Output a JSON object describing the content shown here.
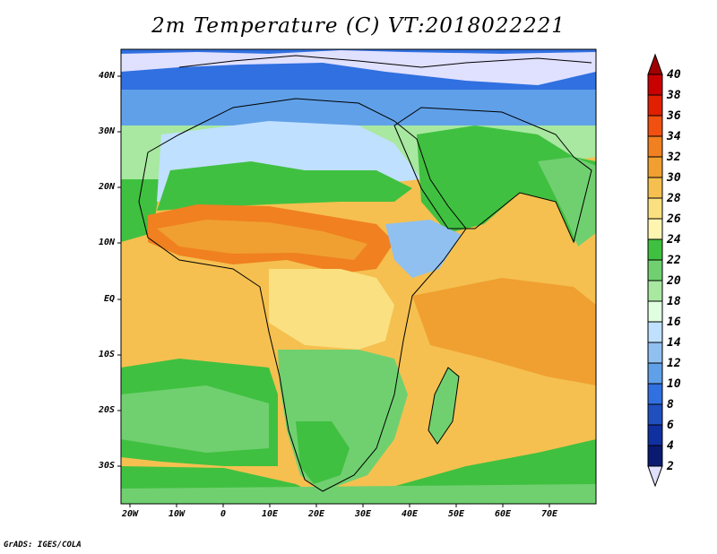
{
  "title": "2m Temperature (C) VT:2018022221",
  "credit": "GrADS: IGES/COLA",
  "lat_labels": [
    "40N",
    "30N",
    "20N",
    "10N",
    "EQ",
    "10S",
    "20S",
    "30S"
  ],
  "lon_labels": [
    "20W",
    "10W",
    "0",
    "10E",
    "20E",
    "30E",
    "40E",
    "50E",
    "60E",
    "70E"
  ],
  "colorbar": {
    "labels": [
      "40",
      "38",
      "36",
      "34",
      "32",
      "30",
      "28",
      "26",
      "24",
      "22",
      "20",
      "18",
      "16",
      "14",
      "12",
      "10",
      "8",
      "6",
      "4",
      "2"
    ],
    "colors": [
      "#a00000",
      "#c80000",
      "#e02000",
      "#f05010",
      "#f08020",
      "#f0a030",
      "#f5c050",
      "#fae080",
      "#fff5b0",
      "#40c040",
      "#70d070",
      "#a8e8a0",
      "#e0ffe0",
      "#c0e0ff",
      "#90c0f0",
      "#60a0e8",
      "#3070e0",
      "#2050c0",
      "#1030a0",
      "#0a1a70",
      "#e0e0ff"
    ]
  }
}
